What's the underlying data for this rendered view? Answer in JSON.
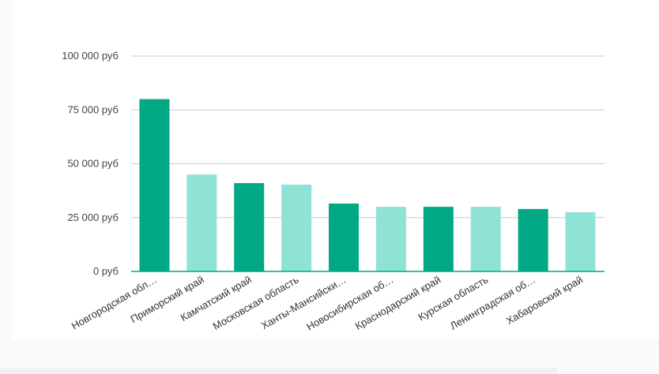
{
  "chart_data": {
    "type": "bar",
    "categories": [
      "Новгородская обл…",
      "Приморский край",
      "Камчатский край",
      "Московская область",
      "Ханты-Мансийски…",
      "Новосибирская об…",
      "Краснодарский край",
      "Курская область",
      "Ленинградская об…",
      "Хабаровский край"
    ],
    "values": [
      80000,
      45000,
      41000,
      40300,
      31500,
      30000,
      30000,
      30000,
      29000,
      27500
    ],
    "bar_colors": [
      "#00a884",
      "#8ee3d6",
      "#00a884",
      "#8ee3d6",
      "#00a884",
      "#8ee3d6",
      "#00a884",
      "#8ee3d6",
      "#00a884",
      "#8ee3d6"
    ],
    "y_ticks": [
      {
        "value": 0,
        "label": "0 руб"
      },
      {
        "value": 25000,
        "label": "25 000 руб"
      },
      {
        "value": 50000,
        "label": "50 000 руб"
      },
      {
        "value": 75000,
        "label": "75 000 руб"
      },
      {
        "value": 100000,
        "label": "100 000 руб"
      }
    ],
    "ylim": [
      0,
      100000
    ],
    "grid": true,
    "legend": "none",
    "gridline_color": "#cccccc",
    "baseline_color": "#00a884"
  }
}
